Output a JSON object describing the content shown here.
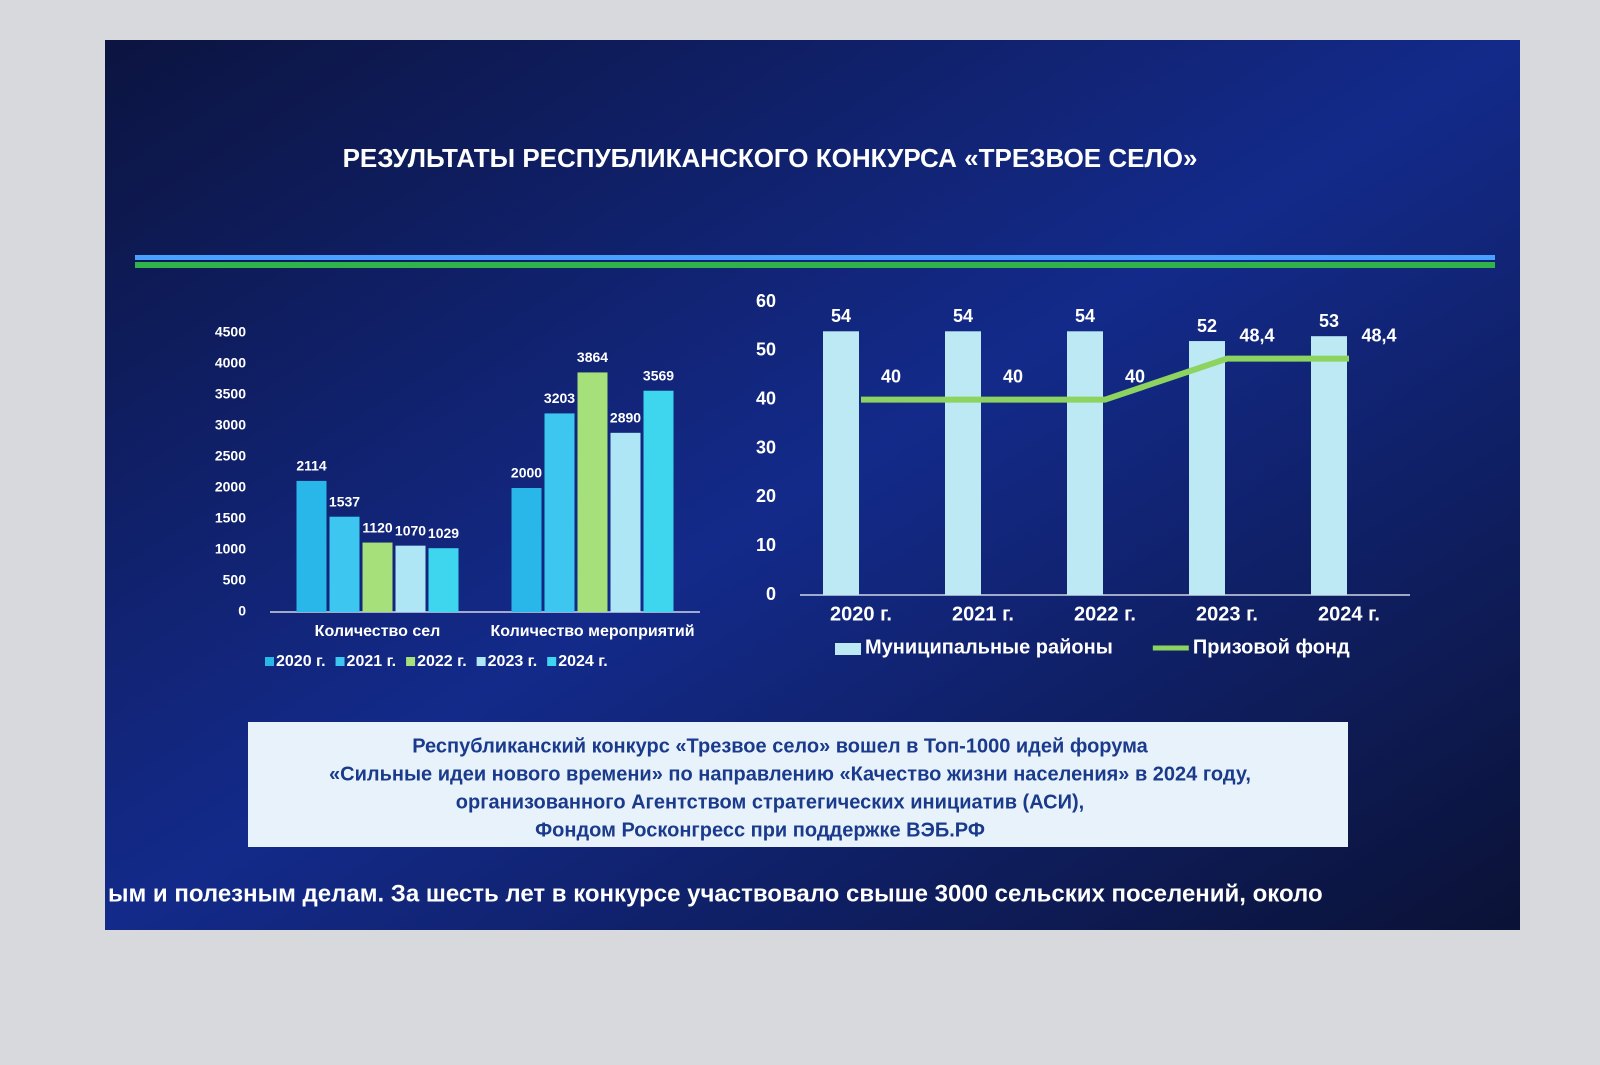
{
  "title": "РЕЗУЛЬТАТЫ РЕСПУБЛИКАНСКОГО КОНКУРСА «ТРЕЗВОЕ СЕЛО»",
  "note": [
    "Республиканский конкурс «Трезвое село» вошел в Топ-1000 идей форума",
    "«Сильные идеи нового времени» по направлению «Качество жизни населения» в 2024 году,",
    "организованного Агентством стратегических инициатив (АСИ),",
    "Фондом Росконгресс при поддержке ВЭБ.РФ"
  ],
  "ticker": "ым и полезным делам.  За шесть лет в конкурсе участвовало свыше 3000 сельских поселений, около",
  "chart_data": [
    {
      "type": "bar",
      "categories": [
        "Количество сел",
        "Количество мероприятий"
      ],
      "series": [
        {
          "name": "2020 г.",
          "color": "#29b6e8",
          "values": [
            2114,
            2000
          ]
        },
        {
          "name": "2021 г.",
          "color": "#3cc6f0",
          "values": [
            1537,
            3203
          ]
        },
        {
          "name": "2022 г.",
          "color": "#a6e07a",
          "values": [
            1120,
            3864
          ]
        },
        {
          "name": "2023 г.",
          "color": "#aee6f6",
          "values": [
            1070,
            2890
          ]
        },
        {
          "name": "2024 г.",
          "color": "#3dd6ee",
          "values": [
            1029,
            3569
          ]
        }
      ],
      "ylim": [
        0,
        4500
      ],
      "yticks": [
        0,
        500,
        1000,
        1500,
        2000,
        2500,
        3000,
        3500,
        4000,
        4500
      ]
    },
    {
      "type": "bar",
      "categories": [
        "2020 г.",
        "2021 г.",
        "2022 г.",
        "2023 г.",
        "2024 г."
      ],
      "series": [
        {
          "name": "Муниципальные районы",
          "color": "#bde9f5",
          "values": [
            54,
            54,
            54,
            52,
            53
          ]
        },
        {
          "name": "Призовой фонд",
          "type": "line",
          "color": "#8dd35f",
          "values": [
            40,
            40,
            40,
            48.4,
            48.4
          ],
          "value_labels": [
            "40",
            "40",
            "40",
            "48,4",
            "48,4"
          ]
        }
      ],
      "ylim": [
        0,
        60
      ],
      "yticks": [
        0,
        10,
        20,
        30,
        40,
        50,
        60
      ]
    }
  ]
}
